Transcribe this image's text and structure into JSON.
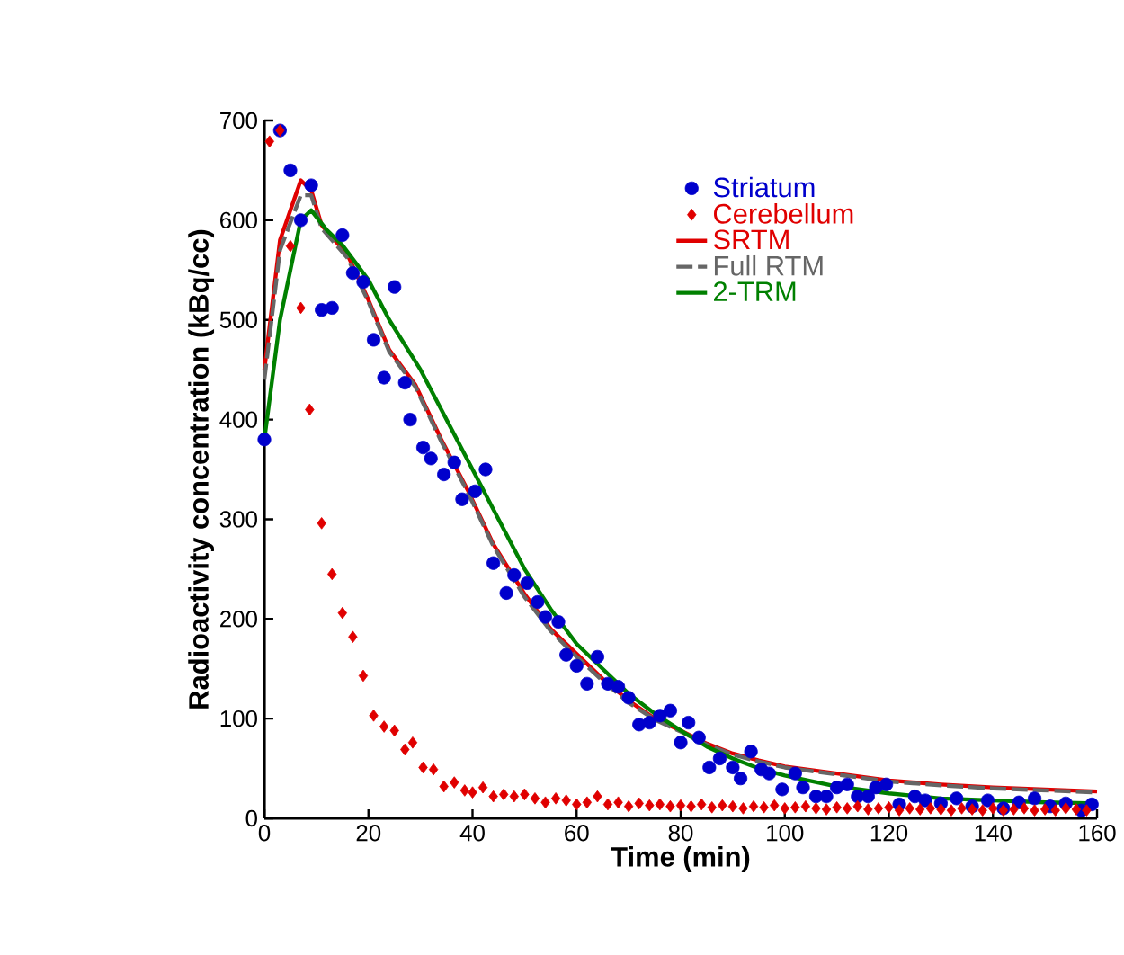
{
  "chart_data": {
    "type": "scatter",
    "xlabel": "Time (min)",
    "ylabel": "Radioactivity concentration (kBq/cc)",
    "xlim": [
      0,
      160
    ],
    "ylim": [
      0,
      700
    ],
    "xticks": [
      0,
      20,
      40,
      60,
      80,
      100,
      120,
      140,
      160
    ],
    "yticks": [
      0,
      100,
      200,
      300,
      400,
      500,
      600,
      700
    ],
    "grid": false,
    "legend": "top right",
    "series": [
      {
        "name": "Striatum",
        "marker": "circle",
        "color": "#0000cc",
        "x": [
          0,
          3,
          5,
          7,
          9,
          11,
          13,
          15,
          17,
          19,
          21,
          23,
          25,
          27,
          28,
          30.5,
          32,
          34.5,
          36.5,
          38,
          40.5,
          42.5,
          44,
          46.5,
          48,
          50.5,
          52.5,
          54,
          56.5,
          58,
          60,
          62,
          64,
          66,
          68,
          70,
          72,
          74,
          76,
          78,
          80,
          81.5,
          83.5,
          85.5,
          87.5,
          90,
          91.5,
          93.5,
          95.5,
          97,
          99.5,
          102,
          103.5,
          106,
          108,
          110,
          112,
          114,
          116,
          117.5,
          119.5,
          122,
          125,
          127,
          130,
          133,
          136,
          139,
          142,
          145,
          148,
          151,
          154,
          157,
          159
        ],
        "values": [
          380,
          690,
          650,
          600,
          635,
          510,
          512,
          585,
          547,
          538,
          480,
          442,
          533,
          437,
          400,
          372,
          361,
          345,
          357,
          320,
          328,
          350,
          256,
          226,
          244,
          236,
          217,
          202,
          197,
          164,
          153,
          135,
          162,
          135,
          132,
          121,
          94,
          96,
          103,
          108,
          76,
          96,
          81,
          51,
          60,
          51,
          40,
          67,
          49,
          45,
          29,
          45,
          31,
          22,
          22,
          31,
          34,
          22,
          22,
          31,
          34,
          14,
          22,
          18,
          15,
          20,
          12,
          18,
          10,
          16,
          20,
          12,
          15,
          8,
          14
        ]
      },
      {
        "name": "Cerebellum",
        "marker": "diamond",
        "color": "#e00000",
        "x": [
          1,
          3,
          5,
          7,
          8.7,
          11,
          13,
          15,
          17,
          19,
          21,
          23,
          25,
          27,
          28.5,
          30.5,
          32.5,
          34.5,
          36.5,
          38.5,
          40,
          42,
          44,
          46,
          48,
          50,
          52,
          54,
          56,
          58,
          60,
          62,
          64,
          66,
          68,
          70,
          72,
          74,
          76,
          78,
          80,
          82,
          84,
          86,
          88,
          90,
          92,
          94,
          96,
          98,
          100,
          102,
          104,
          106,
          108,
          110,
          112,
          114,
          116,
          118,
          120,
          122,
          124,
          126,
          128,
          130,
          132,
          134,
          136,
          138,
          140,
          142,
          144,
          146,
          148,
          150,
          152,
          154,
          156,
          158
        ],
        "values": [
          679,
          690,
          574,
          512,
          410,
          296,
          245,
          206,
          182,
          143,
          103,
          92,
          88,
          69,
          76,
          51,
          49,
          32,
          36,
          28,
          26,
          31,
          22,
          24,
          22,
          24,
          20,
          16,
          20,
          18,
          14,
          16,
          22,
          14,
          16,
          12,
          15,
          13,
          14,
          12,
          13,
          12,
          14,
          11,
          13,
          12,
          10,
          12,
          11,
          13,
          10,
          11,
          12,
          10,
          9,
          11,
          10,
          12,
          9,
          10,
          11,
          8,
          10,
          9,
          10,
          9,
          8,
          10,
          9,
          8,
          10,
          8,
          9,
          10,
          8,
          9,
          8,
          10,
          9,
          8
        ]
      },
      {
        "name": "SRTM",
        "type": "line",
        "line_style": "solid",
        "color": "#e00000",
        "x": [
          0,
          3,
          7,
          9,
          11,
          16,
          20,
          24,
          29,
          34,
          39,
          44,
          50,
          55,
          60,
          65,
          70,
          75,
          80,
          85,
          90,
          95,
          100,
          110,
          120,
          130,
          140,
          150,
          160
        ],
        "values": [
          450,
          580,
          640,
          630,
          595,
          565,
          520,
          470,
          435,
          380,
          330,
          275,
          225,
          190,
          165,
          140,
          118,
          100,
          88,
          75,
          65,
          58,
          52,
          45,
          38,
          34,
          31,
          29,
          27
        ]
      },
      {
        "name": "Full RTM",
        "type": "line",
        "line_style": "dashed",
        "color": "#666666",
        "x": [
          0,
          3,
          7,
          9,
          11,
          16,
          20,
          24,
          29,
          34,
          39,
          44,
          50,
          55,
          60,
          65,
          70,
          75,
          80,
          85,
          90,
          95,
          100,
          110,
          120,
          130,
          140,
          150,
          160
        ],
        "values": [
          440,
          570,
          625,
          625,
          592,
          562,
          518,
          468,
          433,
          378,
          328,
          273,
          222,
          188,
          162,
          138,
          116,
          99,
          87,
          74,
          64,
          57,
          51,
          44,
          37,
          33,
          30,
          28,
          26
        ]
      },
      {
        "name": "2-TRM",
        "type": "line",
        "line_style": "solid",
        "color": "#008000",
        "x": [
          0,
          3,
          7,
          9,
          12,
          15,
          20,
          24,
          30,
          35,
          40,
          45,
          50,
          55,
          60,
          65,
          70,
          75,
          80,
          85,
          90,
          95,
          100,
          110,
          120,
          130,
          140,
          150,
          160
        ],
        "values": [
          380,
          500,
          600,
          610,
          590,
          575,
          540,
          500,
          450,
          400,
          350,
          300,
          250,
          210,
          175,
          150,
          125,
          105,
          88,
          72,
          60,
          50,
          43,
          32,
          25,
          20,
          18,
          16,
          15
        ]
      }
    ]
  }
}
